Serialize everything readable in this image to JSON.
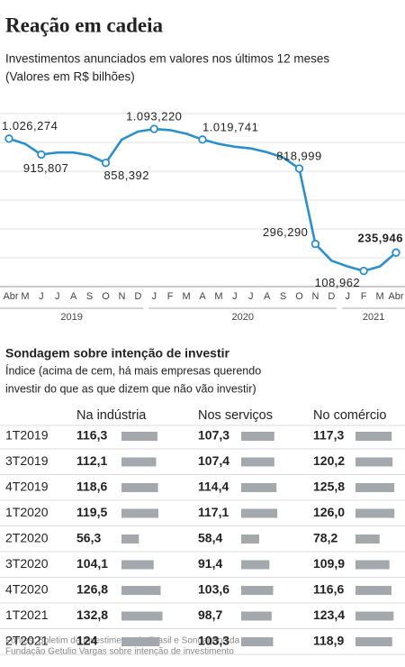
{
  "chart_data": {
    "type": "line",
    "title": "Reação em cadeia",
    "subtitle": [
      "Investimentos anunciados em valores nos últimos 12 meses",
      "(Valores em R$ bilhões)"
    ],
    "categories": [
      "Abr",
      "M",
      "J",
      "J",
      "A",
      "S",
      "O",
      "N",
      "D",
      "J",
      "F",
      "M",
      "A",
      "M",
      "J",
      "J",
      "A",
      "S",
      "O",
      "N",
      "D",
      "J",
      "F",
      "M",
      "Abr"
    ],
    "groups": [
      {
        "label": "2019",
        "count": 9
      },
      {
        "label": "2020",
        "count": 12
      },
      {
        "label": "2021",
        "count": 4
      }
    ],
    "values": [
      1026.274,
      990,
      915.807,
      930,
      930,
      910,
      858.392,
      1020,
      1075,
      1093.22,
      1085,
      1060,
      1019.741,
      990,
      970,
      958,
      932,
      895,
      818.999,
      296.29,
      180,
      140,
      108.962,
      140,
      235.946
    ],
    "value_labels": [
      "1.026,274",
      null,
      "915,807",
      null,
      null,
      null,
      "858,392",
      null,
      null,
      "1.093,220",
      null,
      null,
      "1.019,741",
      null,
      null,
      null,
      null,
      null,
      "818,999",
      "296,290",
      null,
      null,
      "108,962",
      null,
      "235,946"
    ],
    "color": "#2b8fc9",
    "ylim": [
      0,
      1300
    ],
    "yticks": [
      200,
      400,
      600,
      800,
      1000,
      1200
    ],
    "grid": true
  },
  "table": {
    "title": "Sondagem sobre intenção de investir",
    "subtitle": [
      "Índice (acima de cem, há mais empresas querendo",
      "investir do que as que dizem que não vão investir)"
    ],
    "columns": [
      "Na indústria",
      "Nos serviços",
      "No comércio"
    ],
    "bar_color": "#a3a8ad",
    "xlim": [
      0,
      140
    ],
    "rows": [
      {
        "period": "1T2019",
        "values": [
          116.3,
          107.3,
          117.3
        ],
        "value_labels": [
          "116,3",
          "107,3",
          "117,3"
        ]
      },
      {
        "period": "3T2019",
        "values": [
          112.1,
          107.4,
          120.2
        ],
        "value_labels": [
          "112,1",
          "107,4",
          "120,2"
        ]
      },
      {
        "period": "4T2019",
        "values": [
          118.6,
          114.4,
          125.8
        ],
        "value_labels": [
          "118,6",
          "114,4",
          "125,8"
        ]
      },
      {
        "period": "1T2020",
        "values": [
          119.5,
          117.1,
          126.0
        ],
        "value_labels": [
          "119,5",
          "117,1",
          "126,0"
        ]
      },
      {
        "period": "2T2020",
        "values": [
          56.3,
          58.4,
          78.2
        ],
        "value_labels": [
          "56,3",
          "58,4",
          "78,2"
        ]
      },
      {
        "period": "3T2020",
        "values": [
          104.1,
          91.4,
          109.9
        ],
        "value_labels": [
          "104,1",
          "91,4",
          "109,9"
        ]
      },
      {
        "period": "4T2020",
        "values": [
          126.8,
          103.6,
          116.6
        ],
        "value_labels": [
          "126,8",
          "103,6",
          "116,6"
        ]
      },
      {
        "period": "1T2021",
        "values": [
          132.8,
          98.7,
          123.4
        ],
        "value_labels": [
          "132,8",
          "98,7",
          "123,4"
        ]
      },
      {
        "period": "2T2021",
        "values": [
          124,
          103.3,
          118.9
        ],
        "value_labels": [
          "124",
          "103,3",
          "118,9"
        ]
      }
    ]
  },
  "source": [
    "Fontes: Boletim de Investimento do Brasil e Sondagens da",
    "Fundação Getulio Vargas sobre intenção de investimento"
  ]
}
